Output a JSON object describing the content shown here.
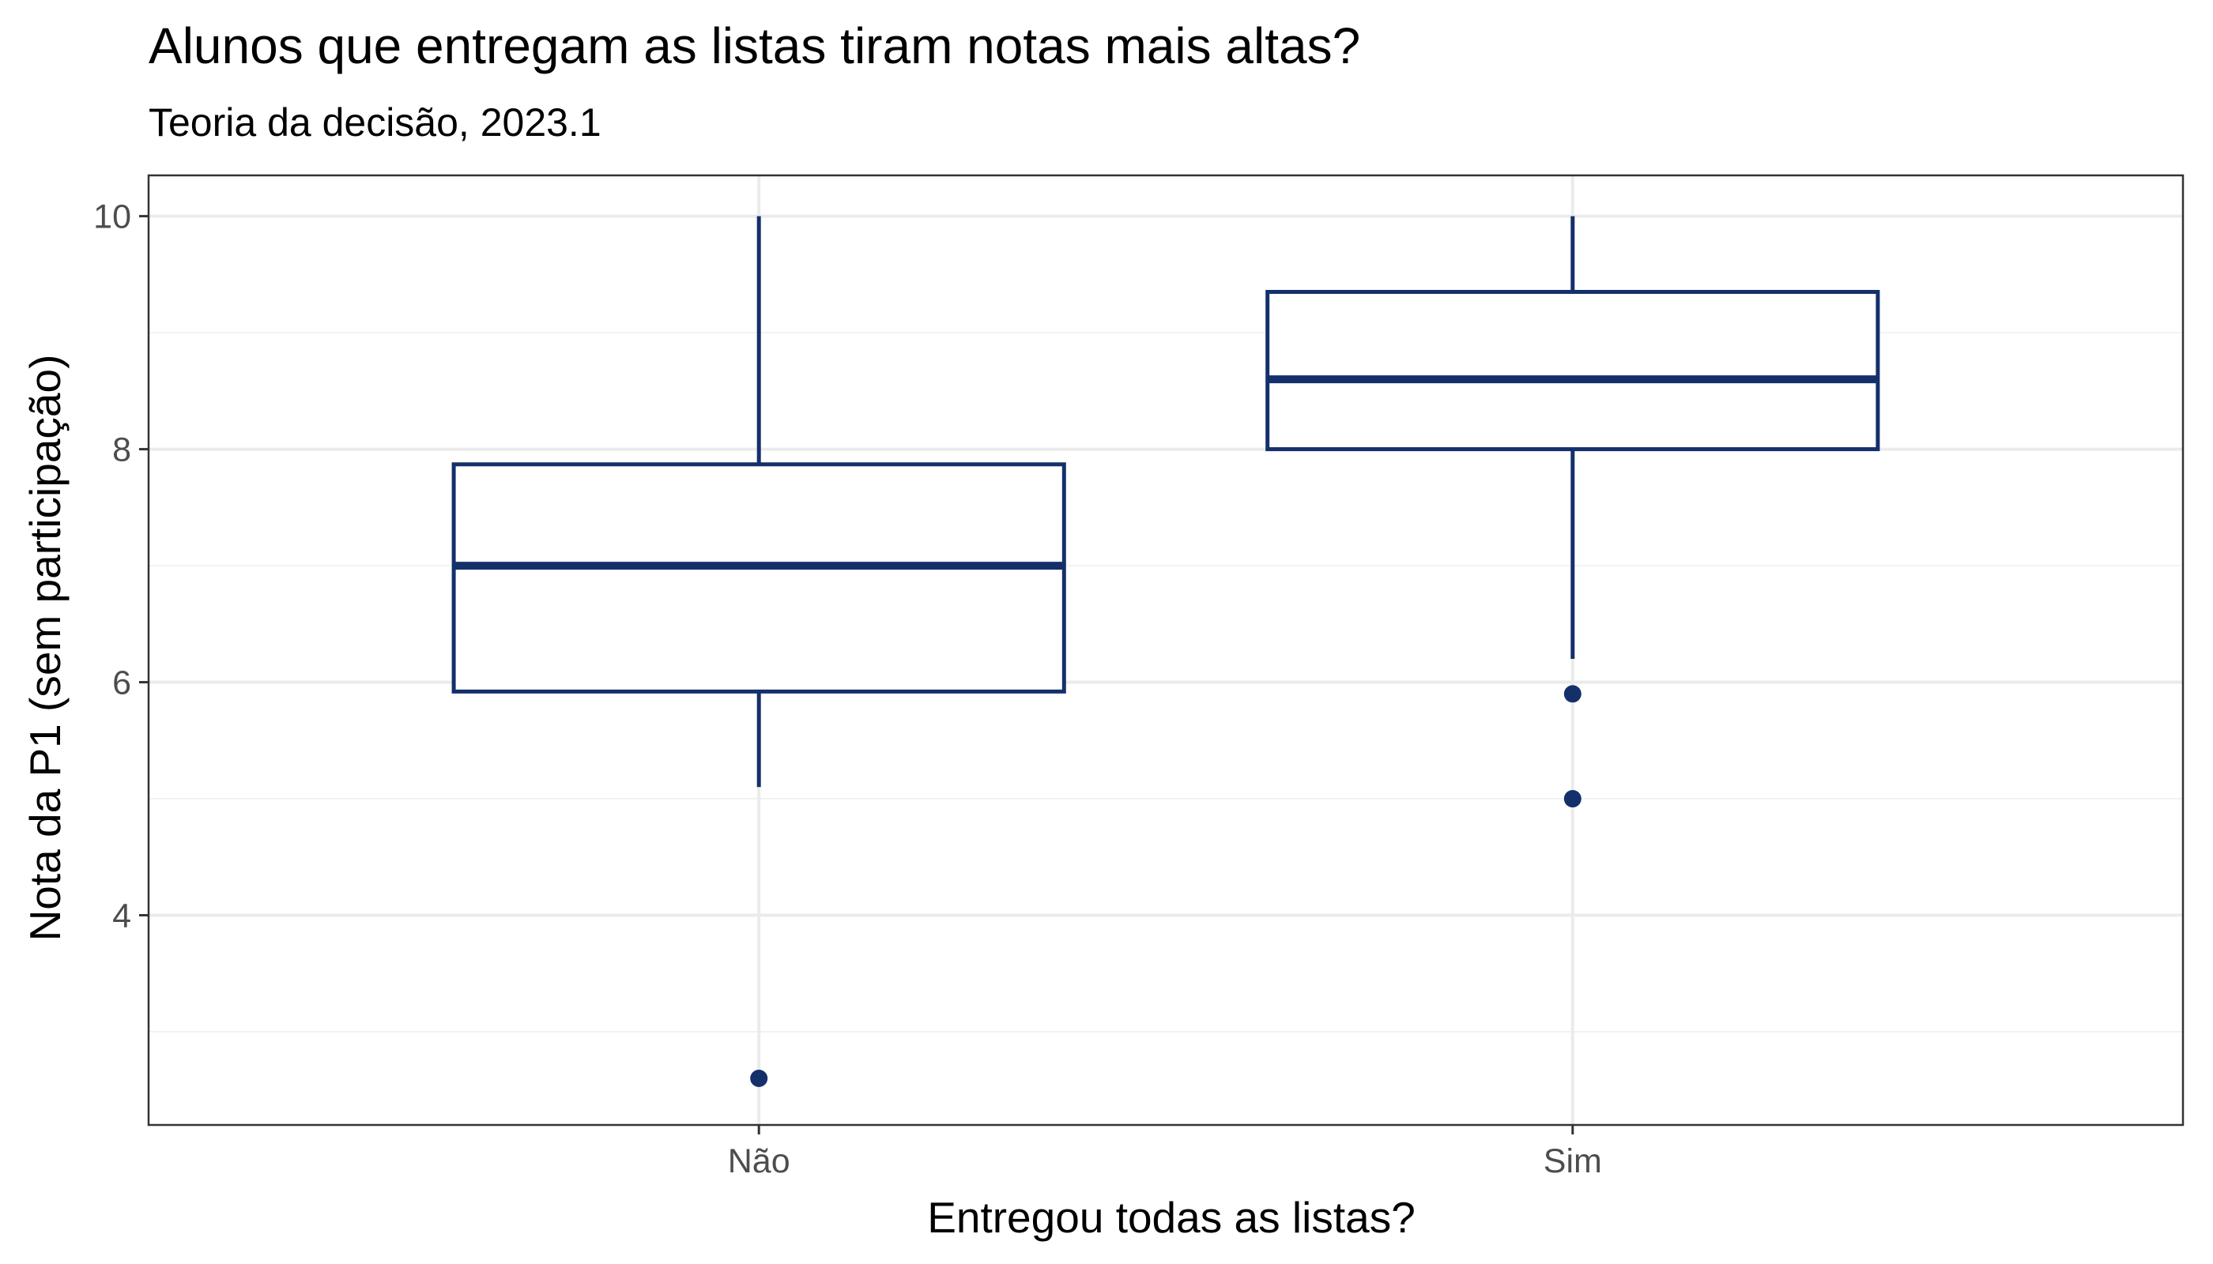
{
  "chart_data": {
    "type": "boxplot",
    "title": "Alunos que entregam as listas tiram notas mais altas?",
    "subtitle": "Teoria da decisão, 2023.1",
    "xlabel": "Entregou todas as listas?",
    "ylabel": "Nota da P1 (sem participação)",
    "ylim": [
      2.2,
      10.35
    ],
    "yticks": [
      "4",
      "6",
      "8",
      "10"
    ],
    "grid": true,
    "categories": [
      "Não",
      "Sim"
    ],
    "boxes": [
      {
        "category": "Não",
        "whisker_low": 5.1,
        "q1": 5.92,
        "median": 7.0,
        "q3": 7.87,
        "whisker_high": 10.0,
        "outliers": [
          2.6
        ]
      },
      {
        "category": "Sim",
        "whisker_low": 6.2,
        "q1": 8.0,
        "median": 8.6,
        "q3": 9.35,
        "whisker_high": 10.0,
        "outliers": [
          5.9,
          5.0
        ]
      }
    ],
    "colors": {
      "box": "#14306b",
      "grid_major": "#ebebeb",
      "grid_minor": "#f2f2f2",
      "panel_border": "#333333"
    }
  }
}
